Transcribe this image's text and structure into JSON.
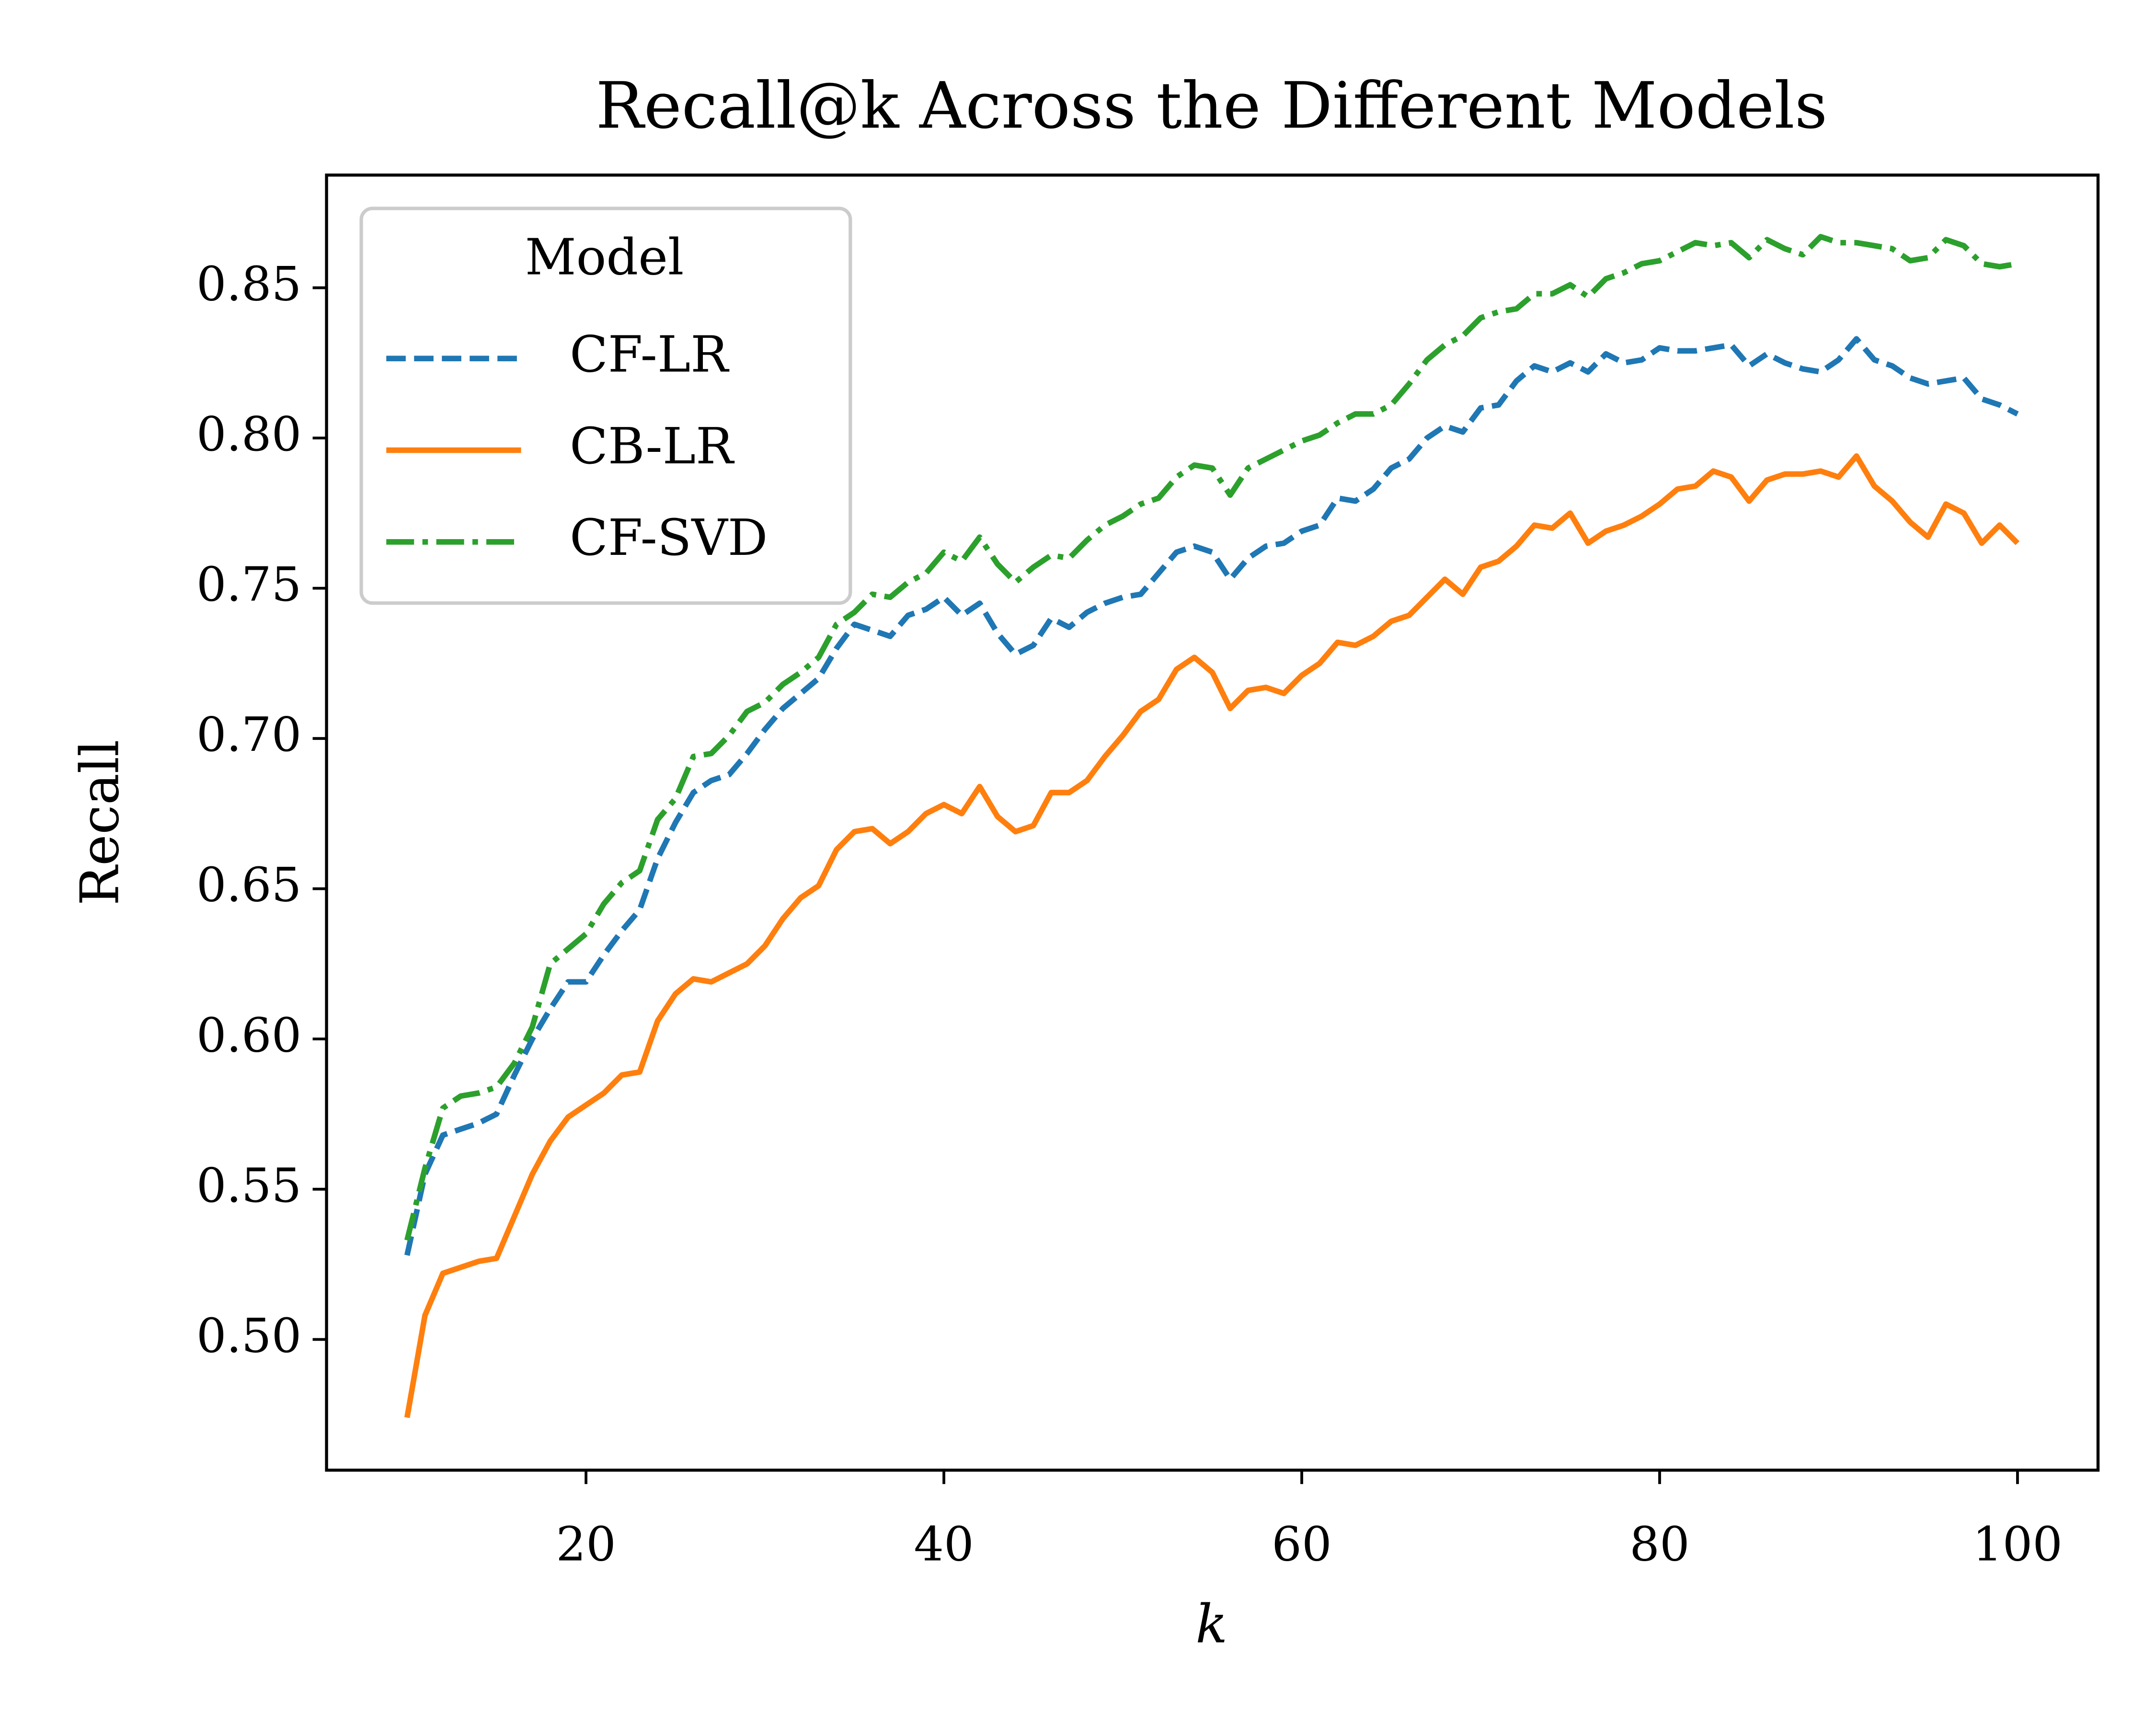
{
  "chart_data": {
    "type": "line",
    "title": "Recall@k Across the Different Models",
    "x_label": "k",
    "y_label": "Recall",
    "x": [
      10,
      11,
      12,
      13,
      14,
      15,
      16,
      17,
      18,
      19,
      20,
      21,
      22,
      23,
      24,
      25,
      26,
      27,
      28,
      29,
      30,
      31,
      32,
      33,
      34,
      35,
      36,
      37,
      38,
      39,
      40,
      41,
      42,
      43,
      44,
      45,
      46,
      47,
      48,
      49,
      50,
      51,
      52,
      53,
      54,
      55,
      56,
      57,
      58,
      59,
      60,
      61,
      62,
      63,
      64,
      65,
      66,
      67,
      68,
      69,
      70,
      71,
      72,
      73,
      74,
      75,
      76,
      77,
      78,
      79,
      80,
      81,
      82,
      83,
      84,
      85,
      86,
      87,
      88,
      89,
      90,
      91,
      92,
      93,
      94,
      95,
      96,
      97,
      98,
      99,
      100
    ],
    "series": [
      {
        "name": "CF-LR",
        "color": "#1f77b4",
        "linestyle": "dashed",
        "values": [
          0.528,
          0.555,
          0.568,
          0.57,
          0.572,
          0.575,
          0.588,
          0.6,
          0.61,
          0.619,
          0.619,
          0.628,
          0.636,
          0.643,
          0.66,
          0.672,
          0.682,
          0.686,
          0.688,
          0.695,
          0.703,
          0.71,
          0.715,
          0.72,
          0.73,
          0.738,
          0.736,
          0.734,
          0.741,
          0.743,
          0.747,
          0.741,
          0.745,
          0.735,
          0.728,
          0.731,
          0.74,
          0.737,
          0.742,
          0.745,
          0.747,
          0.748,
          0.755,
          0.762,
          0.764,
          0.762,
          0.753,
          0.76,
          0.764,
          0.765,
          0.769,
          0.771,
          0.78,
          0.779,
          0.783,
          0.79,
          0.793,
          0.8,
          0.804,
          0.802,
          0.81,
          0.811,
          0.819,
          0.824,
          0.822,
          0.825,
          0.822,
          0.828,
          0.825,
          0.826,
          0.83,
          0.829,
          0.829,
          0.83,
          0.831,
          0.824,
          0.828,
          0.825,
          0.823,
          0.822,
          0.826,
          0.833,
          0.826,
          0.824,
          0.82,
          0.818,
          0.819,
          0.82,
          0.813,
          0.811,
          0.808
        ]
      },
      {
        "name": "CB-LR",
        "color": "#ff7f0e",
        "linestyle": "solid",
        "values": [
          0.474,
          0.508,
          0.522,
          0.524,
          0.526,
          0.527,
          0.541,
          0.555,
          0.566,
          0.574,
          0.578,
          0.582,
          0.588,
          0.589,
          0.606,
          0.615,
          0.62,
          0.619,
          0.622,
          0.625,
          0.631,
          0.64,
          0.647,
          0.651,
          0.663,
          0.669,
          0.67,
          0.665,
          0.669,
          0.675,
          0.678,
          0.675,
          0.684,
          0.674,
          0.669,
          0.671,
          0.682,
          0.682,
          0.686,
          0.694,
          0.701,
          0.709,
          0.713,
          0.723,
          0.727,
          0.722,
          0.71,
          0.716,
          0.717,
          0.715,
          0.721,
          0.725,
          0.732,
          0.731,
          0.734,
          0.739,
          0.741,
          0.747,
          0.753,
          0.748,
          0.757,
          0.759,
          0.764,
          0.771,
          0.77,
          0.775,
          0.765,
          0.769,
          0.771,
          0.774,
          0.778,
          0.783,
          0.784,
          0.789,
          0.787,
          0.779,
          0.786,
          0.788,
          0.788,
          0.789,
          0.787,
          0.794,
          0.784,
          0.779,
          0.772,
          0.767,
          0.778,
          0.775,
          0.765,
          0.771,
          0.765
        ]
      },
      {
        "name": "CF-SVD",
        "color": "#2ca02c",
        "linestyle": "dashdot",
        "values": [
          0.533,
          0.557,
          0.577,
          0.581,
          0.582,
          0.584,
          0.592,
          0.604,
          0.625,
          0.63,
          0.635,
          0.645,
          0.652,
          0.656,
          0.673,
          0.68,
          0.694,
          0.695,
          0.701,
          0.709,
          0.712,
          0.718,
          0.722,
          0.727,
          0.738,
          0.742,
          0.748,
          0.747,
          0.752,
          0.755,
          0.762,
          0.759,
          0.767,
          0.758,
          0.752,
          0.757,
          0.761,
          0.76,
          0.766,
          0.771,
          0.774,
          0.778,
          0.78,
          0.787,
          0.791,
          0.79,
          0.781,
          0.79,
          0.793,
          0.796,
          0.799,
          0.801,
          0.805,
          0.808,
          0.808,
          0.811,
          0.818,
          0.826,
          0.831,
          0.834,
          0.84,
          0.842,
          0.843,
          0.848,
          0.848,
          0.851,
          0.847,
          0.853,
          0.855,
          0.858,
          0.859,
          0.862,
          0.865,
          0.864,
          0.865,
          0.86,
          0.866,
          0.863,
          0.861,
          0.867,
          0.865,
          0.865,
          0.864,
          0.863,
          0.859,
          0.86,
          0.866,
          0.864,
          0.858,
          0.857,
          0.858
        ]
      }
    ],
    "xlim": [
      5.5,
      104.5
    ],
    "ylim": [
      0.4565,
      0.8875
    ],
    "xticks": [
      20,
      40,
      60,
      80,
      100
    ],
    "yticks": [
      {
        "value": 0.5,
        "label": "0.50"
      },
      0.55,
      {
        "value": 0.6,
        "label": "0.60"
      },
      0.65,
      {
        "value": 0.7,
        "label": "0.70"
      },
      0.75,
      {
        "value": 0.8,
        "label": "0.80"
      },
      0.85
    ],
    "legend": {
      "title": "Model",
      "loc": "upper left"
    },
    "grid": false
  }
}
